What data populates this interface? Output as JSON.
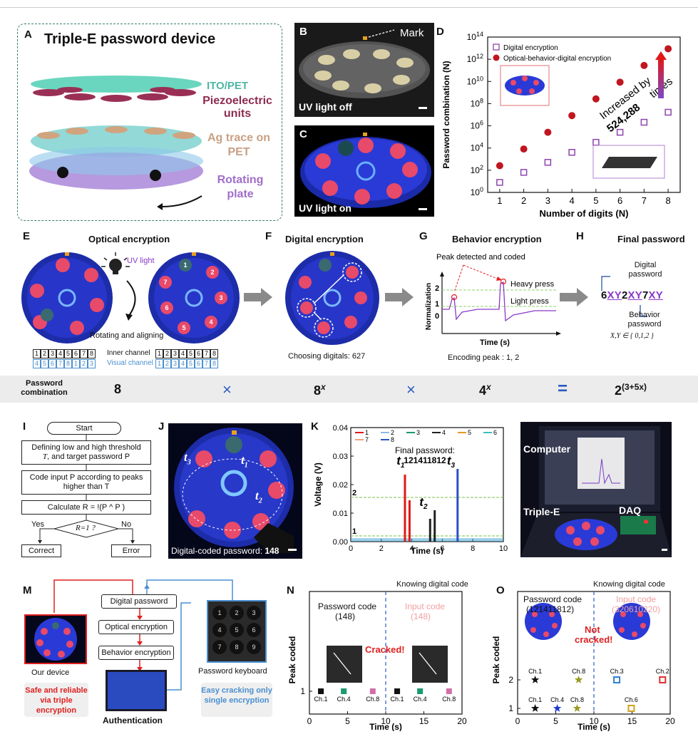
{
  "panelA": {
    "label": "A",
    "title": "Triple-E password device",
    "layers": [
      "ITO/PET",
      "Piezoelectric units",
      "Ag trace on PET",
      "Rotating plate"
    ]
  },
  "panelB": {
    "label": "B",
    "mark": "Mark",
    "caption": "UV light off"
  },
  "panelC": {
    "label": "C",
    "caption": "UV light on"
  },
  "panelD": {
    "label": "D",
    "legend": [
      "Digital encryption",
      "Optical-behavior-digital encryption"
    ],
    "annotation1": "Increased by",
    "annotation2": "524,288",
    "annotation3": "times"
  },
  "chart_data": [
    {
      "type": "scatter",
      "xlabel": "Number of digits (N)",
      "ylabel": "Password combination (N)",
      "x": [
        1,
        2,
        3,
        4,
        5,
        6,
        7,
        8
      ],
      "yscale": "log",
      "ylim": [
        1,
        100000000000000
      ],
      "yticks": [
        "10^0",
        "10^2",
        "10^4",
        "10^6",
        "10^8",
        "10^10",
        "10^12",
        "10^14"
      ],
      "series": [
        {
          "name": "Digital encryption",
          "values": [
            8,
            64,
            512,
            4096,
            32768,
            262144,
            2097152,
            16777216
          ],
          "color": "#8e44ad"
        },
        {
          "name": "Optical-behavior-digital encryption",
          "values": [
            256,
            8192,
            262144,
            8388608,
            268435456,
            8589934592,
            274877906944,
            8796093022208
          ],
          "color": "#c0161f"
        }
      ]
    },
    {
      "type": "line",
      "xlabel": "Time (s)",
      "ylabel": "Voltage (V)",
      "xlim": [
        0,
        10
      ],
      "ylim": [
        0,
        0.04
      ],
      "xticks": [
        0,
        2,
        4,
        6,
        8,
        10
      ],
      "yticks": [
        0.0,
        0.01,
        0.02,
        0.03,
        0.04
      ],
      "legend": [
        "1",
        "2",
        "3",
        "4",
        "5",
        "6",
        "7",
        "8"
      ],
      "thresholds": [
        {
          "label": "1",
          "value": 0.002
        },
        {
          "label": "2",
          "value": 0.0155
        }
      ],
      "peaks": [
        {
          "label": "t1",
          "series": "1",
          "x": 3.55,
          "values": [
            0.0235,
            0.0145
          ]
        },
        {
          "label": "t2",
          "series": "4",
          "x": 5.2,
          "values": [
            0.008,
            0.011
          ]
        },
        {
          "label": "t3",
          "series": "8",
          "x": 7.0,
          "values": [
            0.0255
          ]
        }
      ]
    },
    {
      "type": "scatter",
      "title": "N",
      "xlabel": "Time (s)",
      "ylabel": "Peak coded",
      "xlim": [
        0,
        20
      ],
      "ylim": [
        0,
        4
      ],
      "xticks": [
        0,
        5,
        10,
        15,
        20
      ],
      "points": [
        {
          "label": "Ch.1",
          "x": 1.5,
          "y": 1,
          "color": "#111"
        },
        {
          "label": "Ch.4",
          "x": 4.5,
          "y": 1,
          "color": "#1a9a6f"
        },
        {
          "label": "Ch.8",
          "x": 8.3,
          "y": 1,
          "color": "#d070a8"
        },
        {
          "label": "Ch.1",
          "x": 11.5,
          "y": 1,
          "color": "#111"
        },
        {
          "label": "Ch.4",
          "x": 14.5,
          "y": 1,
          "color": "#1a9a6f"
        },
        {
          "label": "Ch.8",
          "x": 18.3,
          "y": 1,
          "color": "#d070a8"
        }
      ]
    },
    {
      "type": "scatter",
      "title": "O",
      "xlabel": "Time (s)",
      "ylabel": "Peak coded",
      "xlim": [
        0,
        20
      ],
      "ylim": [
        0.6,
        4
      ],
      "xticks": [
        0,
        5,
        10,
        15,
        20
      ],
      "points": [
        {
          "label": "Ch.1",
          "x": 2.3,
          "y": 2,
          "color": "#111"
        },
        {
          "label": "Ch.1",
          "x": 2.3,
          "y": 1,
          "color": "#111"
        },
        {
          "label": "Ch.4",
          "x": 5.2,
          "y": 1,
          "color": "#1a3ad0"
        },
        {
          "label": "Ch.8",
          "x": 8.0,
          "y": 2,
          "color": "#9a9a20"
        },
        {
          "label": "Ch.8",
          "x": 7.8,
          "y": 1,
          "color": "#9a9a20"
        },
        {
          "label": "Ch.3",
          "x": 13.0,
          "y": 2,
          "color": "#2f80d0"
        },
        {
          "label": "Ch.6",
          "x": 14.9,
          "y": 1,
          "color": "#d0a020"
        },
        {
          "label": "Ch.2",
          "x": 19.0,
          "y": 2,
          "color": "#e03030"
        }
      ]
    }
  ],
  "panelE": {
    "label": "E",
    "title": "Optical encryption",
    "uv": "UV light",
    "rotating": "Rotating and aligning",
    "inner": "Inner channel",
    "visual": "Visual channel",
    "row1": [
      "1",
      "2",
      "3",
      "4",
      "5",
      "6",
      "7",
      "8"
    ],
    "row2": [
      "4",
      "5",
      "6",
      "7",
      "8",
      "1",
      "2",
      "3"
    ],
    "row3": [
      "1",
      "2",
      "3",
      "4",
      "5",
      "6",
      "7",
      "8"
    ],
    "row4": [
      "1",
      "2",
      "3",
      "4",
      "5",
      "6",
      "7",
      "8"
    ],
    "dial": [
      "1",
      "2",
      "3",
      "4",
      "5",
      "6",
      "7",
      "8"
    ]
  },
  "panelF": {
    "label": "F",
    "title": "Digital encryption",
    "choosing": "Choosing digitals:  627"
  },
  "panelG": {
    "label": "G",
    "title": "Behavior encryption",
    "peak": "Peak detected and coded",
    "heavy": "Heavy press",
    "light": "Light press",
    "ylabel": "Normalization",
    "xlabel": "Time (s)",
    "encoding": "Encoding peak : 1, 2",
    "levels": [
      "2",
      "1",
      "0"
    ]
  },
  "panelH": {
    "label": "H",
    "title": "Final password",
    "digital": "Digital password",
    "pw_parts": [
      "6",
      "XY",
      "2",
      "XY",
      "7",
      "XY"
    ],
    "behavior": "Behavior password",
    "set": "X,Y ∈  { 0,1,2 }"
  },
  "combo": {
    "label": "Password combination",
    "f1": "8",
    "op1": "×",
    "f2": "8",
    "f2sup": "x",
    "op2": "×",
    "f3": "4",
    "f3sup": "x",
    "eq": "=",
    "f4": "2",
    "f4sup": "(3+5x)"
  },
  "panelI": {
    "label": "I",
    "start": "Start",
    "step1a": "Defining low and high threshold",
    "step1b": "T",
    "step1c": ", and target password P",
    "step2": "Code input P according to peaks higher than T",
    "step3": "Calculate R = !(P ^ P )",
    "decision": "R=1 ?",
    "yes": "Yes",
    "no": "No",
    "correct": "Correct",
    "error": "Error"
  },
  "panelJ": {
    "label": "J",
    "caption": "Digital-coded password: ",
    "value": "148",
    "t1": "t",
    "t2": "t",
    "t3": "t"
  },
  "panelK": {
    "label": "K",
    "final": "Final password:",
    "value": "121411812",
    "t1": "t",
    "t2": "t",
    "t3": "t"
  },
  "panelL": {
    "label": "L",
    "computer": "Computer",
    "triple": "Triple-E",
    "daq": "DAQ"
  },
  "panelM": {
    "label": "M",
    "device": "Our device",
    "safe": "Safe and reliable via triple encryption",
    "steps": [
      "Digital password",
      "Optical encryption",
      "Behavior encryption"
    ],
    "auth": "Authentication",
    "keyboard": "Password keyboard",
    "easy": "Easy cracking only single encryption",
    "keys": [
      "1",
      "2",
      "3",
      "4",
      "5",
      "6",
      "7",
      "8",
      "9",
      "0"
    ]
  },
  "panelN": {
    "label": "N",
    "knowing": "Knowing digital code",
    "pc": "Password code",
    "pcv": "(148)",
    "ic": "Input code",
    "icv": "(148)",
    "status": "Cracked!"
  },
  "panelO": {
    "label": "O",
    "knowing": "Knowing digital code",
    "pc": "Password code",
    "pcv": "(121411812)",
    "ic": "Input code",
    "icv": "(320610220)",
    "status1": "Not",
    "status2": "cracked!"
  }
}
